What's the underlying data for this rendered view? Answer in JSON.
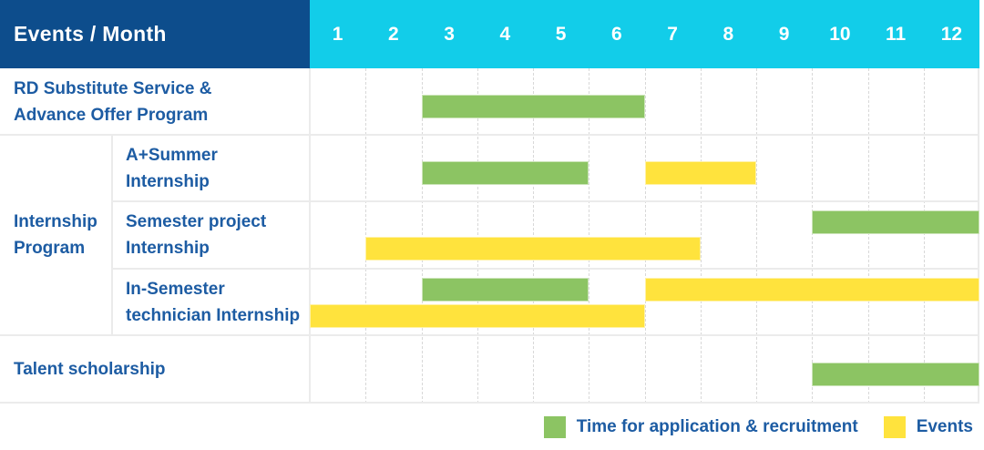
{
  "header": {
    "title": "Events / Month",
    "months": [
      "1",
      "2",
      "3",
      "4",
      "5",
      "6",
      "7",
      "8",
      "9",
      "10",
      "11",
      "12"
    ]
  },
  "legend": [
    {
      "series": "application",
      "label": "Time for application & recruitment"
    },
    {
      "series": "events",
      "label": "Events"
    }
  ],
  "colors": {
    "header_bg": "#0d4d8c",
    "months_bg": "#12cde9",
    "application_green": "#8cc463",
    "events_yellow": "#ffe33d",
    "label_text": "#1d5ca3",
    "grid_border": "#ebebeb",
    "month_dashed_line": "#d8d8d8"
  },
  "chart_data": {
    "type": "gantt",
    "title": "Events / Month",
    "x_axis": {
      "label": "Month",
      "ticks": [
        "1",
        "2",
        "3",
        "4",
        "5",
        "6",
        "7",
        "8",
        "9",
        "10",
        "11",
        "12"
      ],
      "range": [
        1,
        12
      ]
    },
    "series_legend": [
      {
        "key": "application",
        "label": "Time for application & recruitment",
        "color": "#8cc463"
      },
      {
        "key": "events",
        "label": "Events",
        "color": "#ffe33d"
      }
    ],
    "group_label_lines": [
      "Internship",
      "Program"
    ],
    "rows": [
      {
        "label_lines": [
          "RD Substitute Service &",
          "Advance Offer Program"
        ],
        "in_group": false,
        "bar_lines": [
          [
            {
              "series": "application",
              "start_month": 3,
              "end_month": 6
            }
          ]
        ]
      },
      {
        "label_lines": [
          "A+Summer",
          "Internship"
        ],
        "in_group": true,
        "bar_lines": [
          [
            {
              "series": "application",
              "start_month": 3,
              "end_month": 5
            },
            {
              "series": "events",
              "start_month": 7,
              "end_month": 8
            }
          ]
        ]
      },
      {
        "label_lines": [
          "Semester project",
          "Internship"
        ],
        "in_group": true,
        "bar_lines": [
          [
            {
              "series": "application",
              "start_month": 10,
              "end_month": 12
            }
          ],
          [
            {
              "series": "events",
              "start_month": 2,
              "end_month": 7
            }
          ]
        ]
      },
      {
        "label_lines": [
          "In-Semester",
          "technician Internship"
        ],
        "in_group": true,
        "bar_lines": [
          [
            {
              "series": "application",
              "start_month": 3,
              "end_month": 5
            },
            {
              "series": "events",
              "start_month": 7,
              "end_month": 12
            }
          ],
          [
            {
              "series": "events",
              "start_month": 1,
              "end_month": 6
            }
          ]
        ]
      },
      {
        "label_lines": [
          "Talent scholarship"
        ],
        "in_group": false,
        "bar_lines": [
          [
            {
              "series": "application",
              "start_month": 10,
              "end_month": 12
            }
          ]
        ]
      }
    ]
  }
}
